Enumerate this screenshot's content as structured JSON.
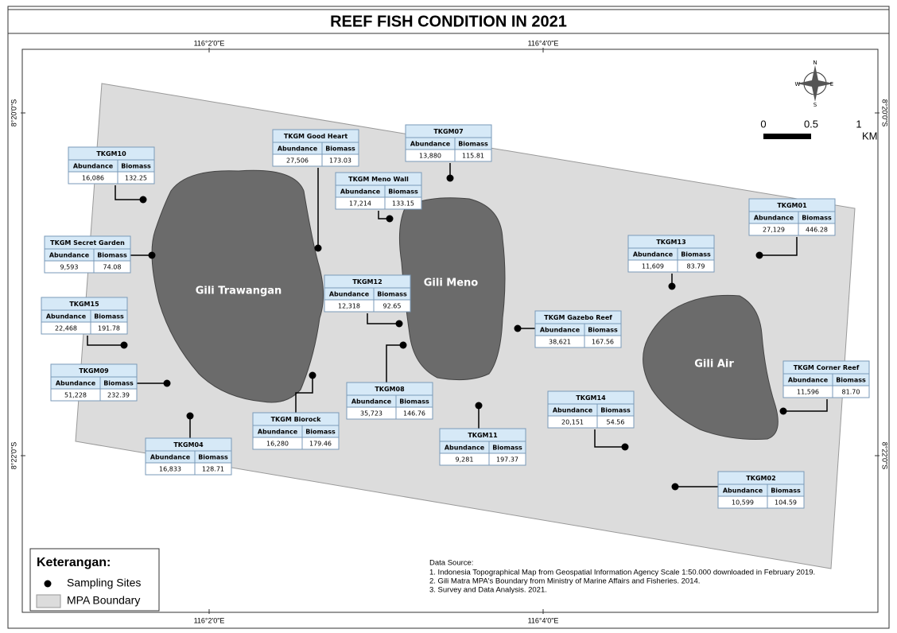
{
  "title": "REEF FISH CONDITION IN 2021",
  "coordinates": {
    "top": [
      "116°2'0\"E",
      "116°4'0\"E"
    ],
    "bottom": [
      "116°2'0\"E",
      "116°4'0\"E"
    ],
    "left": [
      "8°20'0\"S",
      "8°22'0\"S"
    ],
    "right": [
      "8°20'0\"S",
      "8°22'0\"S"
    ]
  },
  "islands": [
    "Gili Trawangan",
    "Gili Meno",
    "Gili Air"
  ],
  "table_header": {
    "abundance": "Abundance",
    "biomass": "Biomass"
  },
  "sites": [
    {
      "name": "TKGM10",
      "abundance": "16,086",
      "biomass": "132.25"
    },
    {
      "name": "TKGM Good Heart",
      "abundance": "27,506",
      "biomass": "173.03"
    },
    {
      "name": "TKGM07",
      "abundance": "13,880",
      "biomass": "115.81"
    },
    {
      "name": "TKGM Meno Wall",
      "abundance": "17,214",
      "biomass": "133.15"
    },
    {
      "name": "TKGM01",
      "abundance": "27,129",
      "biomass": "446.28"
    },
    {
      "name": "TKGM Secret Garden",
      "abundance": "9,593",
      "biomass": "74.08"
    },
    {
      "name": "TKGM13",
      "abundance": "11,609",
      "biomass": "83.79"
    },
    {
      "name": "TKGM12",
      "abundance": "12,318",
      "biomass": "92.65"
    },
    {
      "name": "TKGM15",
      "abundance": "22,468",
      "biomass": "191.78"
    },
    {
      "name": "TKGM Gazebo Reef",
      "abundance": "38,621",
      "biomass": "167.56"
    },
    {
      "name": "TKGM09",
      "abundance": "51,228",
      "biomass": "232.39"
    },
    {
      "name": "TKGM08",
      "abundance": "35,723",
      "biomass": "146.76"
    },
    {
      "name": "TKGM Biorock",
      "abundance": "16,280",
      "biomass": "179.46"
    },
    {
      "name": "TKGM Corner Reef",
      "abundance": "11,596",
      "biomass": "81.70"
    },
    {
      "name": "TKGM14",
      "abundance": "20,151",
      "biomass": "54.56"
    },
    {
      "name": "TKGM04",
      "abundance": "16,833",
      "biomass": "128.71"
    },
    {
      "name": "TKGM11",
      "abundance": "9,281",
      "biomass": "197.37"
    },
    {
      "name": "TKGM02",
      "abundance": "10,599",
      "biomass": "104.59"
    }
  ],
  "scale_bar": {
    "labels": [
      "0",
      "0.5",
      "1"
    ],
    "unit": "KM"
  },
  "compass": {
    "n": "N",
    "e": "E",
    "s": "S",
    "w": "W"
  },
  "legend": {
    "title": "Keterangan:",
    "items": [
      "Sampling Sites",
      "MPA Boundary"
    ]
  },
  "data_source": {
    "title": "Data Source:",
    "lines": [
      "1. Indonesia Topographical Map from Geospatial Information Agency Scale 1:50.000 downloaded in February 2019.",
      "2. Gili Matra MPA's Boundary from Ministry of Marine Affairs and Fisheries. 2014.",
      "3. Survey and Data Analysis. 2021."
    ]
  }
}
